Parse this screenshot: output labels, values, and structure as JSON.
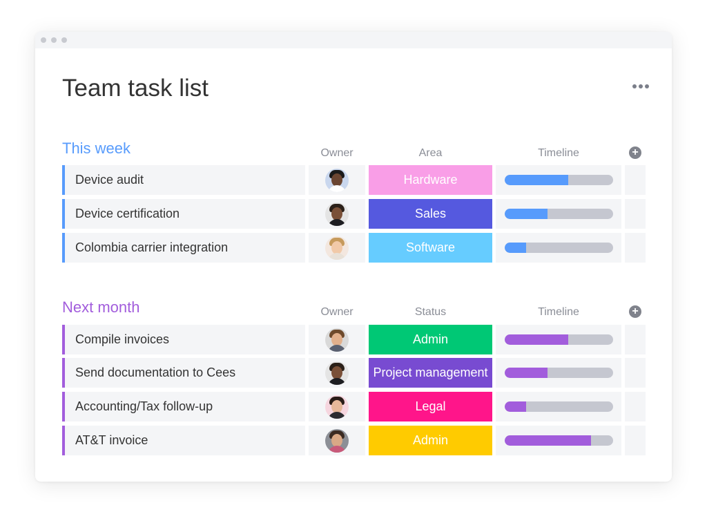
{
  "page_title": "Team task list",
  "groups": [
    {
      "title": "This week",
      "color": "#579bfc",
      "columns": {
        "owner": "Owner",
        "label": "Area",
        "timeline": "Timeline"
      },
      "rows": [
        {
          "task": "Device audit",
          "label": "Hardware",
          "label_color": "#f99ee7",
          "progress": 0.59,
          "avatar": "owner-avatar-1"
        },
        {
          "task": "Device certification",
          "label": "Sales",
          "label_color": "#5559df",
          "progress": 0.4,
          "avatar": "owner-avatar-2"
        },
        {
          "task": "Colombia carrier integration",
          "label": "Software",
          "label_color": "#66ccff",
          "progress": 0.2,
          "avatar": "owner-avatar-3"
        }
      ]
    },
    {
      "title": "Next month",
      "color": "#a25ddc",
      "columns": {
        "owner": "Owner",
        "label": "Status",
        "timeline": "Timeline"
      },
      "rows": [
        {
          "task": "Compile invoices",
          "label": "Admin",
          "label_color": "#00c875",
          "progress": 0.59,
          "avatar": "owner-avatar-4"
        },
        {
          "task": "Send documentation to Cees",
          "label": "Project management",
          "label_color": "#784bd1",
          "progress": 0.4,
          "avatar": "owner-avatar-5"
        },
        {
          "task": "Accounting/Tax follow-up",
          "label": "Legal",
          "label_color": "#ff158a",
          "progress": 0.2,
          "avatar": "owner-avatar-6"
        },
        {
          "task": "AT&T invoice",
          "label": "Admin",
          "label_color": "#ffcb00",
          "progress": 0.8,
          "avatar": "owner-avatar-7"
        }
      ]
    }
  ]
}
